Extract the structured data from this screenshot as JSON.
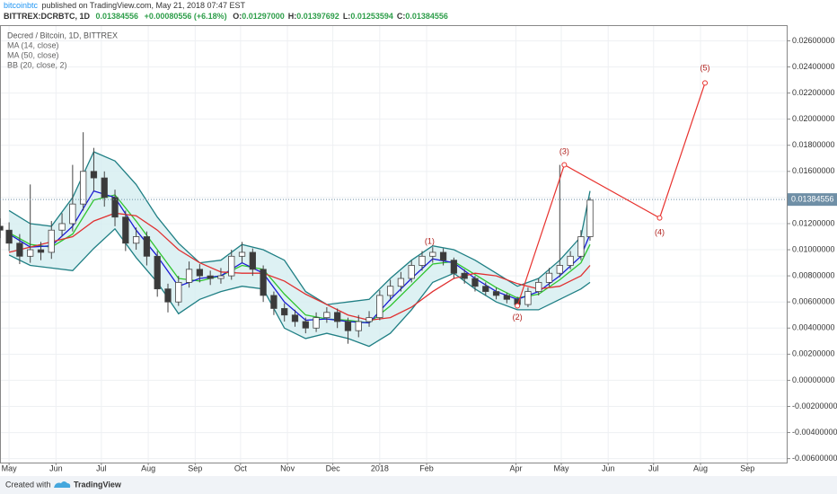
{
  "header": {
    "author": "bitcoinbtc",
    "published": "published on TradingView.com, May 21, 2018 07:47 EST",
    "symbol": "BITTREX:DCRBTC, 1D",
    "last": "0.01384556",
    "change": "+0.00080556 (+6.18%)",
    "ohlc": [
      {
        "label": "O:",
        "value": "0.01297000"
      },
      {
        "label": "H:",
        "value": "0.01397692"
      },
      {
        "label": "L:",
        "value": "0.01253594"
      },
      {
        "label": "C:",
        "value": "0.01384556"
      }
    ]
  },
  "footer": {
    "created": "Created with",
    "brand": "TradingView"
  },
  "chart_data": {
    "type": "candlestick",
    "title": "Decred / Bitcoin, 1D, BITTREX",
    "up_color": "#ffffff",
    "down_color": "#3a3a3a",
    "wick_color": "#444444",
    "x": [
      -6,
      0,
      7,
      14,
      21,
      28,
      35,
      42,
      49,
      56,
      63,
      70,
      77,
      84,
      91,
      98,
      105,
      112,
      119,
      126,
      133,
      140,
      147,
      154,
      161,
      168,
      175,
      182,
      189,
      196,
      203,
      210,
      217,
      224,
      231,
      238,
      245,
      252,
      259,
      266,
      273,
      280,
      287,
      294,
      301,
      308,
      315,
      322,
      329,
      336,
      343,
      350,
      357,
      364,
      371,
      378,
      384
    ],
    "open": [
      0.0118,
      0.0115,
      0.0105,
      0.0095,
      0.01,
      0.0098,
      0.0115,
      0.012,
      0.0135,
      0.016,
      0.0155,
      0.014,
      0.0125,
      0.0105,
      0.011,
      0.0095,
      0.007,
      0.006,
      0.0075,
      0.0085,
      0.008,
      0.0078,
      0.008,
      0.0095,
      0.0098,
      0.0085,
      0.0065,
      0.0055,
      0.005,
      0.0045,
      0.004,
      0.0048,
      0.0052,
      0.0045,
      0.0038,
      0.0045,
      0.0048,
      0.0065,
      0.0072,
      0.0078,
      0.0088,
      0.0095,
      0.0098,
      0.0092,
      0.0082,
      0.0078,
      0.0072,
      0.0068,
      0.0065,
      0.0062,
      0.0058,
      0.0068,
      0.0075,
      0.0082,
      0.0088,
      0.0095,
      0.011
    ],
    "high": [
      0.0124,
      0.0121,
      0.0112,
      0.015,
      0.0106,
      0.0122,
      0.0128,
      0.0165,
      0.019,
      0.0178,
      0.016,
      0.0146,
      0.013,
      0.0117,
      0.0114,
      0.0099,
      0.0074,
      0.008,
      0.0091,
      0.0089,
      0.0084,
      0.0086,
      0.01,
      0.0106,
      0.0101,
      0.0088,
      0.0068,
      0.0059,
      0.0054,
      0.0048,
      0.0052,
      0.0056,
      0.0055,
      0.0048,
      0.005,
      0.0053,
      0.0069,
      0.0077,
      0.0083,
      0.0092,
      0.0099,
      0.0102,
      0.0101,
      0.0094,
      0.0085,
      0.008,
      0.0075,
      0.0071,
      0.0067,
      0.0064,
      0.0071,
      0.0078,
      0.0086,
      0.0165,
      0.0099,
      0.0115,
      0.014
    ],
    "low": [
      0.0109,
      0.0099,
      0.0089,
      0.009,
      0.0092,
      0.0093,
      0.011,
      0.0114,
      0.013,
      0.0145,
      0.0133,
      0.0118,
      0.0099,
      0.01,
      0.0088,
      0.0064,
      0.0052,
      0.0057,
      0.0071,
      0.0075,
      0.0073,
      0.0074,
      0.0077,
      0.009,
      0.008,
      0.006,
      0.005,
      0.0045,
      0.0041,
      0.0036,
      0.0037,
      0.0044,
      0.004,
      0.0028,
      0.0033,
      0.0041,
      0.0046,
      0.0061,
      0.0068,
      0.0075,
      0.0084,
      0.009,
      0.0088,
      0.0078,
      0.0074,
      0.0068,
      0.0065,
      0.0062,
      0.0059,
      0.0055,
      0.0056,
      0.0065,
      0.0072,
      0.0079,
      0.0085,
      0.0092,
      0.0107
    ],
    "close": [
      0.0115,
      0.0105,
      0.0095,
      0.01,
      0.0098,
      0.0115,
      0.012,
      0.0135,
      0.016,
      0.0155,
      0.014,
      0.0125,
      0.0105,
      0.011,
      0.0095,
      0.007,
      0.006,
      0.0075,
      0.0085,
      0.008,
      0.0078,
      0.008,
      0.0095,
      0.0098,
      0.0085,
      0.0065,
      0.0055,
      0.005,
      0.0045,
      0.004,
      0.0048,
      0.0052,
      0.0045,
      0.0038,
      0.0045,
      0.0048,
      0.0065,
      0.0072,
      0.0078,
      0.0088,
      0.0095,
      0.0098,
      0.0092,
      0.0082,
      0.0078,
      0.0072,
      0.0068,
      0.0065,
      0.0062,
      0.0058,
      0.0068,
      0.0075,
      0.0082,
      0.0088,
      0.0095,
      0.011,
      0.0138
    ],
    "overlays": [
      {
        "name": "MA (14, close)",
        "color": "#1a1ad6",
        "x": [
          0,
          14,
          28,
          42,
          56,
          70,
          84,
          98,
          112,
          126,
          140,
          154,
          168,
          182,
          196,
          210,
          224,
          238,
          252,
          266,
          280,
          294,
          308,
          322,
          336,
          350,
          364,
          378,
          384
        ],
        "values": [
          0.0112,
          0.0102,
          0.0103,
          0.0118,
          0.0145,
          0.014,
          0.0115,
          0.0095,
          0.0072,
          0.0078,
          0.008,
          0.009,
          0.0082,
          0.006,
          0.0046,
          0.0047,
          0.0045,
          0.0044,
          0.0062,
          0.0078,
          0.0093,
          0.009,
          0.0078,
          0.0068,
          0.0062,
          0.0068,
          0.008,
          0.0095,
          0.0112
        ]
      },
      {
        "name": "MA (50, close)",
        "color": "#e03030",
        "x": [
          0,
          14,
          28,
          42,
          56,
          70,
          84,
          98,
          112,
          126,
          140,
          154,
          168,
          182,
          196,
          210,
          224,
          238,
          252,
          266,
          280,
          294,
          308,
          322,
          336,
          350,
          364,
          378,
          384
        ],
        "values": [
          0.0098,
          0.0102,
          0.0106,
          0.011,
          0.0122,
          0.0128,
          0.0126,
          0.0115,
          0.01,
          0.009,
          0.0083,
          0.0082,
          0.0082,
          0.0076,
          0.0066,
          0.0058,
          0.005,
          0.0046,
          0.0048,
          0.0056,
          0.0068,
          0.0078,
          0.0082,
          0.008,
          0.0074,
          0.007,
          0.0072,
          0.008,
          0.0088
        ]
      }
    ],
    "bands": {
      "name": "BB (20, close, 2)",
      "color": "#1f7f84",
      "basis_color": "#2fc42f",
      "fill": "#d5eef0",
      "x": [
        0,
        14,
        28,
        42,
        56,
        70,
        84,
        98,
        112,
        126,
        140,
        154,
        168,
        182,
        196,
        210,
        224,
        238,
        252,
        266,
        280,
        294,
        308,
        322,
        336,
        350,
        364,
        378,
        384
      ],
      "upper": [
        0.013,
        0.012,
        0.0118,
        0.014,
        0.0175,
        0.0168,
        0.015,
        0.0125,
        0.0105,
        0.009,
        0.0092,
        0.0104,
        0.01,
        0.0092,
        0.0068,
        0.0058,
        0.006,
        0.0062,
        0.0078,
        0.0092,
        0.0103,
        0.01,
        0.0092,
        0.0082,
        0.0072,
        0.0078,
        0.0092,
        0.011,
        0.0145
      ],
      "basis": [
        0.0113,
        0.0104,
        0.0102,
        0.0112,
        0.0138,
        0.0142,
        0.0122,
        0.01,
        0.0078,
        0.0076,
        0.008,
        0.0088,
        0.0085,
        0.0066,
        0.005,
        0.0047,
        0.0046,
        0.0044,
        0.0057,
        0.0073,
        0.0089,
        0.0091,
        0.0081,
        0.0071,
        0.0063,
        0.0066,
        0.0077,
        0.009,
        0.0104
      ],
      "lower": [
        0.0096,
        0.0088,
        0.0086,
        0.0084,
        0.0101,
        0.0116,
        0.0094,
        0.0075,
        0.0051,
        0.0062,
        0.0068,
        0.0072,
        0.007,
        0.004,
        0.0032,
        0.0036,
        0.0032,
        0.0026,
        0.0036,
        0.0054,
        0.0075,
        0.0082,
        0.007,
        0.006,
        0.0054,
        0.0054,
        0.0062,
        0.007,
        0.0075
      ]
    },
    "wave": {
      "color": "#e8322e",
      "x": [
        336,
        367,
        430,
        460
      ],
      "values": [
        0.0057,
        0.0165,
        0.01244,
        0.02277
      ]
    },
    "annotations": [
      {
        "text": "(1)",
        "x": 278,
        "y": 0.0106
      },
      {
        "text": "(2)",
        "x": 336,
        "y": 0.0048
      },
      {
        "text": "(3)",
        "x": 367,
        "y": 0.0175
      },
      {
        "text": "(4)",
        "x": 430,
        "y": 0.0113
      },
      {
        "text": "(5)",
        "x": 460,
        "y": 0.0239
      }
    ],
    "annotation_color": "#b0201c",
    "last_price": 0.01384556,
    "last_price_color": "#6f8fa6",
    "xlim": [
      -6,
      514
    ],
    "ylim": [
      -0.0063,
      0.0272
    ],
    "grid": true,
    "xticks": [
      {
        "value": 0,
        "label": "May"
      },
      {
        "value": 31,
        "label": "Jun"
      },
      {
        "value": 61,
        "label": "Jul"
      },
      {
        "value": 92,
        "label": "Aug"
      },
      {
        "value": 123,
        "label": "Sep"
      },
      {
        "value": 153,
        "label": "Oct"
      },
      {
        "value": 184,
        "label": "Nov"
      },
      {
        "value": 214,
        "label": "Dec"
      },
      {
        "value": 245,
        "label": "2018"
      },
      {
        "value": 276,
        "label": "Feb"
      },
      {
        "value": 335,
        "label": "Apr"
      },
      {
        "value": 365,
        "label": "May"
      },
      {
        "value": 396,
        "label": "Jun"
      },
      {
        "value": 426,
        "label": "Jul"
      },
      {
        "value": 457,
        "label": "Aug"
      },
      {
        "value": 488,
        "label": "Sep"
      }
    ],
    "yticks": [
      {
        "value": -0.006,
        "label": "-0.00600000"
      },
      {
        "value": -0.004,
        "label": "-0.00400000"
      },
      {
        "value": -0.002,
        "label": "-0.00200000"
      },
      {
        "value": 0,
        "label": "0.00000000"
      },
      {
        "value": 0.002,
        "label": "0.00200000"
      },
      {
        "value": 0.004,
        "label": "0.00400000"
      },
      {
        "value": 0.006,
        "label": "0.00600000"
      },
      {
        "value": 0.008,
        "label": "0.00800000"
      },
      {
        "value": 0.01,
        "label": "0.01000000"
      },
      {
        "value": 0.012,
        "label": "0.01200000"
      },
      {
        "value": 0.014,
        "label": "0.01400000"
      },
      {
        "value": 0.016,
        "label": "0.01600000"
      },
      {
        "value": 0.018,
        "label": "0.01800000"
      },
      {
        "value": 0.02,
        "label": "0.02000000"
      },
      {
        "value": 0.022,
        "label": "0.02200000"
      },
      {
        "value": 0.024,
        "label": "0.02400000"
      },
      {
        "value": 0.026,
        "label": "0.02600000"
      }
    ]
  }
}
